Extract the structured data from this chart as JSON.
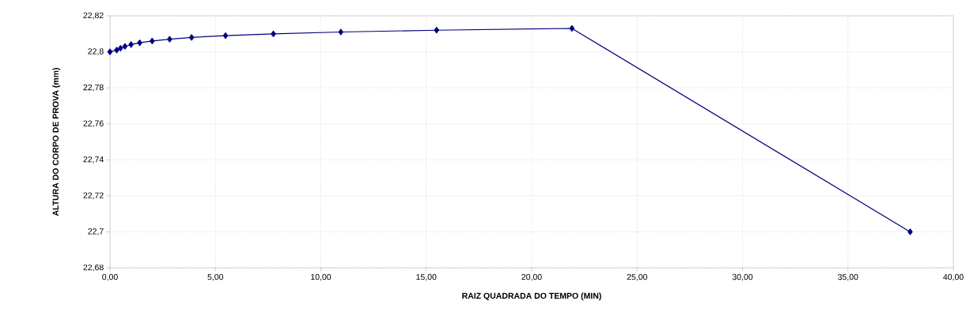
{
  "chart_data": {
    "type": "line",
    "xlabel": "RAIZ QUADRADA DO TEMPO (MIN)",
    "ylabel": "ALTURA DO CORPO DE PROVA (mm)",
    "x": [
      0,
      0.32,
      0.5,
      0.71,
      1,
      1.41,
      2,
      2.83,
      3.87,
      5.48,
      7.75,
      10.95,
      15.49,
      21.91,
      37.95
    ],
    "series": [
      {
        "color": "#000080",
        "values": [
          22.8,
          22.801,
          22.802,
          22.803,
          22.804,
          22.805,
          22.806,
          22.807,
          22.808,
          22.809,
          22.81,
          22.811,
          22.812,
          22.813,
          22.7
        ]
      }
    ],
    "xlim": [
      0,
      40
    ],
    "ylim": [
      22.68,
      22.82
    ],
    "xticks": [
      {
        "value": 0,
        "label": "0,00"
      },
      {
        "value": 5,
        "label": "5,00"
      },
      {
        "value": 10,
        "label": "10,00"
      },
      {
        "value": 15,
        "label": "15,00"
      },
      {
        "value": 20,
        "label": "20,00"
      },
      {
        "value": 25,
        "label": "25,00"
      },
      {
        "value": 30,
        "label": "30,00"
      },
      {
        "value": 35,
        "label": "35,00"
      },
      {
        "value": 40,
        "label": "40,00"
      }
    ],
    "yticks": [
      {
        "value": 22.68,
        "label": "22,68"
      },
      {
        "value": 22.7,
        "label": "22,7"
      },
      {
        "value": 22.72,
        "label": "22,72"
      },
      {
        "value": 22.74,
        "label": "22,74"
      },
      {
        "value": 22.76,
        "label": "22,76"
      },
      {
        "value": 22.78,
        "label": "22,78"
      },
      {
        "value": 22.8,
        "label": "22,8"
      },
      {
        "value": 22.82,
        "label": "22,82"
      }
    ],
    "grid": true,
    "marker": "diamond",
    "line_style": "solid"
  }
}
